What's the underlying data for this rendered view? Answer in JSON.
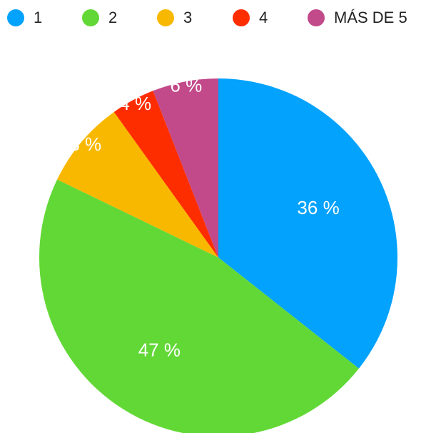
{
  "chart_data": {
    "type": "pie",
    "categories": [
      "1",
      "2",
      "3",
      "4",
      "MÁS DE 5"
    ],
    "values": [
      36,
      47,
      8,
      4,
      6
    ],
    "value_labels": [
      "36 %",
      "47 %",
      "8 %",
      "4 %",
      "6 %"
    ],
    "colors": [
      "#03a2fd",
      "#62d836",
      "#f9b800",
      "#fe2d00",
      "#c2498a"
    ],
    "legend": "top"
  }
}
